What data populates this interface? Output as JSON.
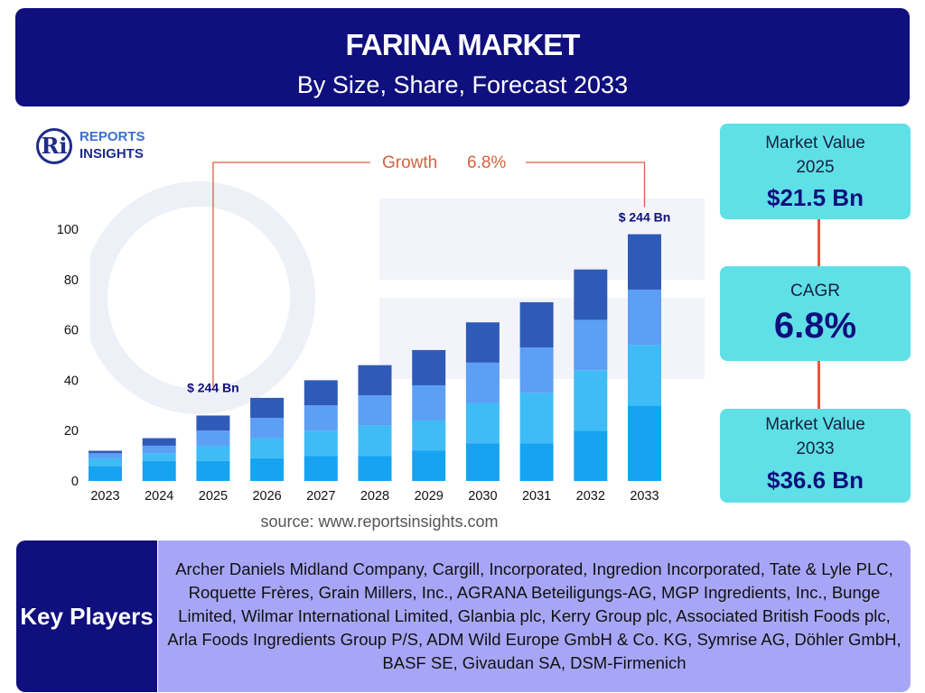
{
  "header": {
    "title": "FARINA MARKET",
    "subtitle": "By Size, Share, Forecast 2033"
  },
  "logo": {
    "mark": "Ri",
    "line1": "REPORTS",
    "line2": "INSIGHTS"
  },
  "chart_data": {
    "type": "bar",
    "stacked": true,
    "categories": [
      "2023",
      "2024",
      "2025",
      "2026",
      "2027",
      "2028",
      "2029",
      "2030",
      "2031",
      "2032",
      "2033"
    ],
    "series": [
      {
        "values": [
          6,
          8,
          8,
          9,
          10,
          10,
          12,
          15,
          15,
          20,
          30
        ],
        "color": "#16a3f2"
      },
      {
        "values": [
          3,
          3,
          6,
          8,
          10,
          12,
          12,
          16,
          20,
          24,
          24
        ],
        "color": "#3fbcf5"
      },
      {
        "values": [
          2,
          3,
          6,
          8,
          10,
          12,
          14,
          16,
          18,
          20,
          22
        ],
        "color": "#5c9ff5"
      },
      {
        "values": [
          1,
          3,
          6,
          8,
          10,
          12,
          14,
          16,
          18,
          20,
          22
        ],
        "color": "#2f5bb8"
      }
    ],
    "ylim": [
      0,
      100
    ],
    "yticks": [
      0,
      20,
      40,
      60,
      80,
      100
    ],
    "grid": false,
    "annotations": {
      "growth_label": "Growth",
      "growth_value": "6.8%",
      "start_bar_label": "$ 244 Bn",
      "end_bar_label": "$ 244 Bn"
    },
    "source": "source: www.reportsinsights.com",
    "colors": {
      "axis_text": "#111111",
      "bar_label": "#0f0f7e",
      "growth": "#d4623f"
    }
  },
  "cards": {
    "value_2025": {
      "label": "Market Value 2025",
      "value": "$21.5 Bn"
    },
    "cagr": {
      "label": "CAGR",
      "value": "6.8%"
    },
    "value_2033": {
      "label": "Market Value 2033",
      "value": "$36.6 Bn"
    }
  },
  "key_players": {
    "title": "Key Players",
    "list": "Archer Daniels Midland Company, Cargill, Incorporated, Ingredion Incorporated, Tate & Lyle PLC, Roquette Frères, Grain Millers, Inc., AGRANA Beteiligungs-AG, MGP Ingredients, Inc., Bunge Limited, Wilmar International Limited, Glanbia plc, Kerry Group plc, Associated British Foods plc, Arla Foods Ingredients Group P/S, ADM Wild Europe GmbH & Co. KG, Symrise AG, Döhler GmbH, BASF SE, Givaudan SA, DSM-Firmenich"
  },
  "colors": {
    "navy": "#0f0f7e",
    "card": "#5fe0e6",
    "connector": "#e3573a",
    "key_players_bg": "#a7a6f6"
  }
}
